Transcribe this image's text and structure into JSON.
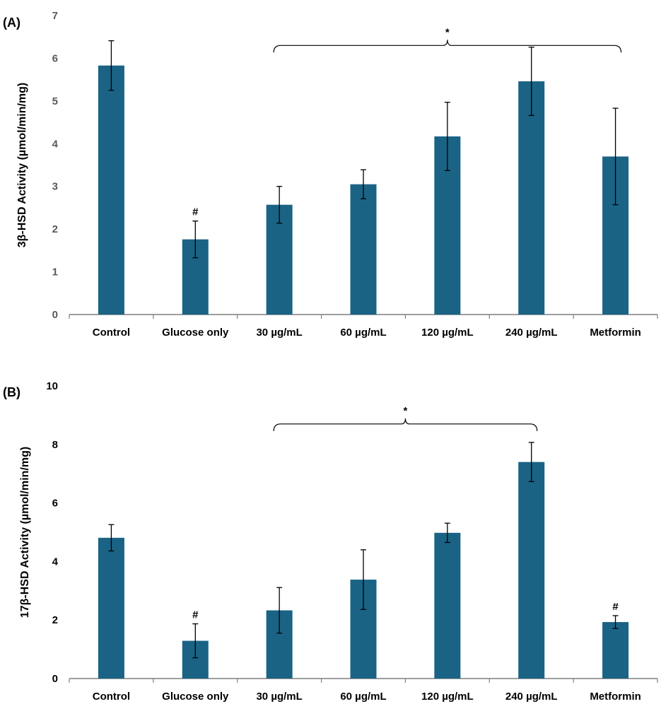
{
  "colors": {
    "bar": "#1a6385",
    "axis": "#7f7f7f",
    "text": "#000000"
  },
  "chart_data": [
    {
      "panel_label": "(A)",
      "type": "bar",
      "ylabel": "3β-HSD Activity (µmol/min/mg)",
      "ylim": [
        0,
        7
      ],
      "yticks": [
        0,
        1,
        2,
        3,
        4,
        5,
        6,
        7
      ],
      "ytick_color": "#595959",
      "categories": [
        "Control",
        "Glucose only",
        "30 µg/mL",
        "60 µg/mL",
        "120  µg/mL",
        "240 µg/mL",
        "Metformin"
      ],
      "values": [
        5.83,
        1.76,
        2.57,
        3.05,
        4.17,
        5.46,
        3.7
      ],
      "errors": [
        0.58,
        0.43,
        0.43,
        0.34,
        0.8,
        0.8,
        1.13
      ],
      "markers": [
        "",
        "#",
        "",
        "",
        "",
        "",
        ""
      ],
      "significance": {
        "label": "*",
        "from": 2,
        "to": 6,
        "level": 6.3
      }
    },
    {
      "panel_label": "(B)",
      "type": "bar",
      "ylabel": "17β-HSD Activity (µmol/min/mg)",
      "ylim": [
        0,
        10
      ],
      "yticks": [
        0,
        2,
        4,
        6,
        8,
        10
      ],
      "ytick_color": "#000000",
      "categories": [
        "Control",
        "Glucose only",
        "30 µg/mL",
        "60 µg/mL",
        "120  µg/mL",
        "240 µg/mL",
        "Metformin"
      ],
      "values": [
        4.81,
        1.29,
        2.33,
        3.38,
        4.98,
        7.4,
        1.93
      ],
      "errors": [
        0.45,
        0.58,
        0.78,
        1.02,
        0.33,
        0.67,
        0.22
      ],
      "markers": [
        "",
        "#",
        "",
        "",
        "",
        "",
        "#"
      ],
      "significance": {
        "label": "*",
        "from": 2,
        "to": 5,
        "level": 8.7
      }
    }
  ]
}
